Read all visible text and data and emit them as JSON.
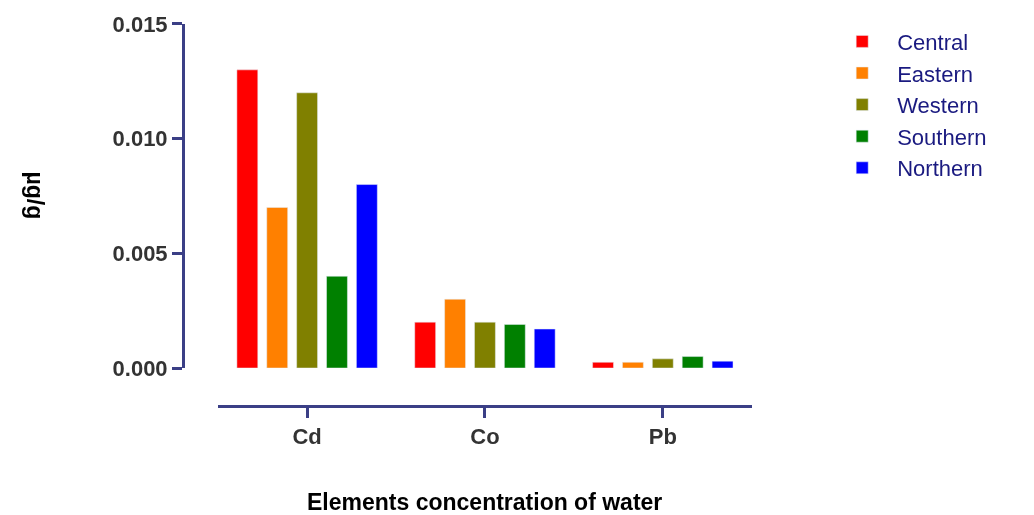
{
  "chart_data": {
    "type": "bar",
    "xlabel": "Elements concentration of water",
    "ylabel": "µg/g",
    "categories": [
      "Cd",
      "Co",
      "Pb"
    ],
    "series": [
      {
        "name": "Central",
        "color": "#ff0000",
        "values": [
          0.013,
          0.002,
          0.00025
        ]
      },
      {
        "name": "Eastern",
        "color": "#ff8000",
        "values": [
          0.007,
          0.003,
          0.00025
        ]
      },
      {
        "name": "Western",
        "color": "#808000",
        "values": [
          0.012,
          0.002,
          0.0004
        ]
      },
      {
        "name": "Southern",
        "color": "#008000",
        "values": [
          0.004,
          0.0019,
          0.0005
        ]
      },
      {
        "name": "Northern",
        "color": "#0000ff",
        "values": [
          0.008,
          0.0017,
          0.0003
        ]
      }
    ],
    "ylim": [
      0,
      0.015
    ],
    "yticks": [
      {
        "value": 0,
        "label": "0.000"
      },
      {
        "value": 0.005,
        "label": "0.005"
      },
      {
        "value": 0.01,
        "label": "0.010"
      },
      {
        "value": 0.015,
        "label": "0.015"
      }
    ],
    "legend": "top right"
  }
}
